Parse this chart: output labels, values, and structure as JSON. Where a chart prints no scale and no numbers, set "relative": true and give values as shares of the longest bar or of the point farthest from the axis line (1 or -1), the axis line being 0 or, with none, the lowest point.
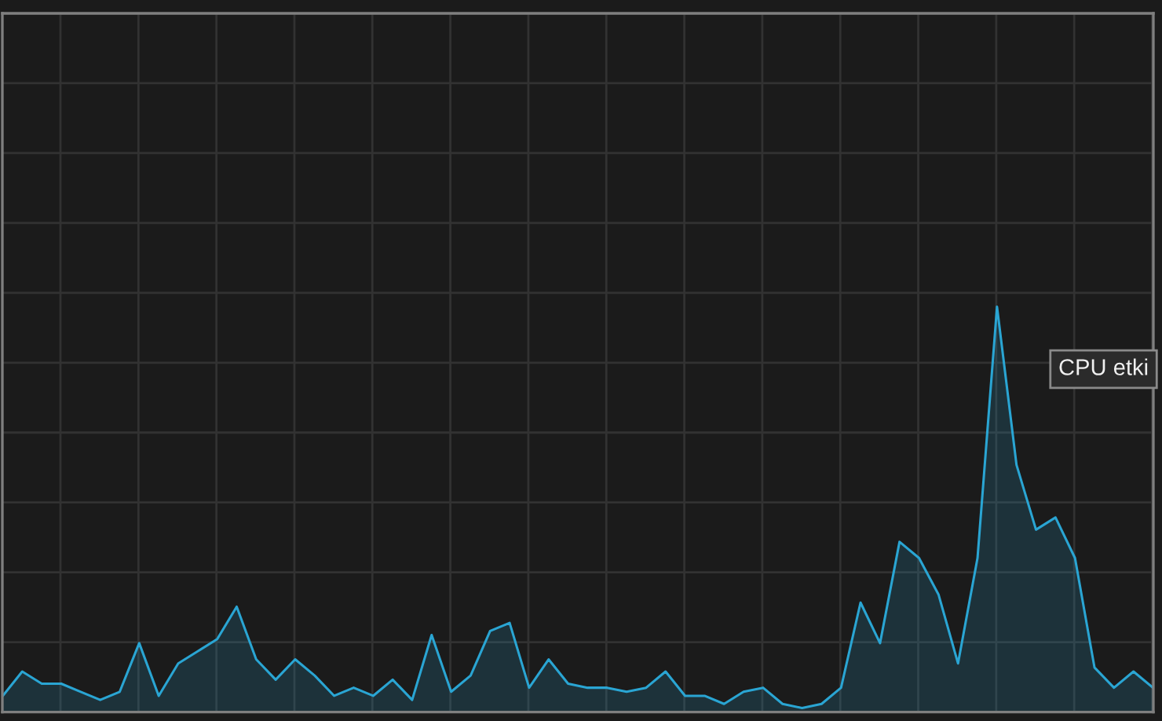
{
  "chart_data": {
    "type": "area",
    "relative": true,
    "grid": true,
    "categories": [
      null,
      null,
      null,
      null,
      null,
      null,
      null,
      null,
      null,
      null,
      null,
      null,
      null,
      null,
      null,
      null,
      null,
      null,
      null,
      null,
      null,
      null,
      null,
      null,
      null,
      null,
      null,
      null,
      null,
      null,
      null,
      null,
      null,
      null,
      null,
      null,
      null,
      null,
      null,
      null,
      null,
      null,
      null,
      null,
      null,
      null,
      null,
      null,
      null,
      null,
      null,
      null,
      null,
      null,
      null,
      null,
      null,
      null,
      null,
      null
    ],
    "series": [
      {
        "color": "#2aa5d3",
        "values": [
          0.04,
          0.1,
          0.07,
          0.07,
          0.05,
          0.03,
          0.05,
          0.17,
          0.04,
          0.12,
          0.15,
          0.18,
          0.26,
          0.13,
          0.08,
          0.13,
          0.09,
          0.04,
          0.06,
          0.04,
          0.08,
          0.03,
          0.19,
          0.05,
          0.09,
          0.2,
          0.22,
          0.06,
          0.13,
          0.07,
          0.06,
          0.06,
          0.05,
          0.06,
          0.1,
          0.04,
          0.04,
          0.02,
          0.05,
          0.06,
          0.02,
          0.01,
          0.02,
          0.06,
          0.27,
          0.17,
          0.42,
          0.38,
          0.29,
          0.12,
          0.38,
          1,
          0.61,
          0.45,
          0.48,
          0.38,
          0.11,
          0.06,
          0.1,
          0.06
        ]
      }
    ],
    "annotations": [
      "CPU etki"
    ]
  }
}
